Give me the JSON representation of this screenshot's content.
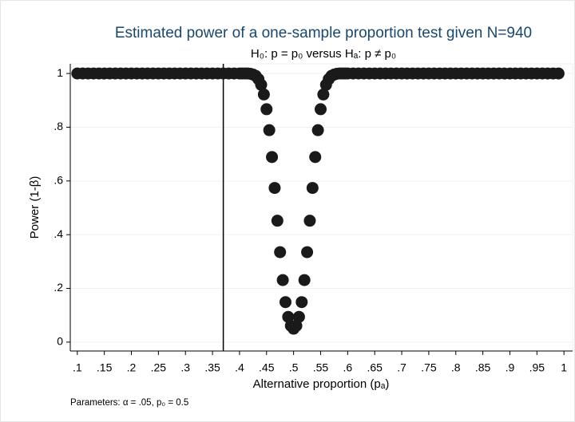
{
  "chart_data": {
    "type": "scatter",
    "title": "Estimated power of a one-sample proportion test given N=940",
    "subtitle": "H₀: p = p₀  versus  Hₐ: p ≠ p₀",
    "x_label": "Alternative proportion (pₐ)",
    "y_label": "Power (1-β)",
    "note": "Parameters: α = .05, p₀ = 0.5",
    "color": "#1a1a1a",
    "grid": true,
    "reference_line_x": 0.37,
    "xlim": [
      0.087,
      1.016
    ],
    "ylim": [
      -0.033,
      1.036
    ],
    "xticks": [
      {
        "value": 0.1,
        "label": ".1"
      },
      {
        "value": 0.15,
        "label": ".15"
      },
      {
        "value": 0.2,
        "label": ".2"
      },
      {
        "value": 0.25,
        "label": ".25"
      },
      {
        "value": 0.3,
        "label": ".3"
      },
      {
        "value": 0.35,
        "label": ".35"
      },
      {
        "value": 0.4,
        "label": ".4"
      },
      {
        "value": 0.45,
        "label": ".45"
      },
      {
        "value": 0.5,
        "label": ".5"
      },
      {
        "value": 0.55,
        "label": ".55"
      },
      {
        "value": 0.6,
        "label": ".6"
      },
      {
        "value": 0.65,
        "label": ".65"
      },
      {
        "value": 0.7,
        "label": ".7"
      },
      {
        "value": 0.75,
        "label": ".75"
      },
      {
        "value": 0.8,
        "label": ".8"
      },
      {
        "value": 0.85,
        "label": ".85"
      },
      {
        "value": 0.9,
        "label": ".9"
      },
      {
        "value": 0.95,
        "label": ".95"
      },
      1
    ],
    "yticks": [
      0,
      {
        "value": 0.2,
        "label": ".2"
      },
      {
        "value": 0.4,
        "label": ".4"
      },
      {
        "value": 0.6,
        "label": ".6"
      },
      {
        "value": 0.8,
        "label": ".8"
      },
      1
    ],
    "x": [
      0.1,
      0.11,
      0.12,
      0.13,
      0.14,
      0.15,
      0.16,
      0.17,
      0.18,
      0.19,
      0.2,
      0.21,
      0.22,
      0.23,
      0.24,
      0.25,
      0.26,
      0.27,
      0.28,
      0.29,
      0.3,
      0.31,
      0.32,
      0.33,
      0.34,
      0.35,
      0.36,
      0.37,
      0.38,
      0.39,
      0.4,
      0.405,
      0.41,
      0.415,
      0.42,
      0.425,
      0.43,
      0.435,
      0.44,
      0.445,
      0.45,
      0.455,
      0.46,
      0.465,
      0.47,
      0.475,
      0.48,
      0.485,
      0.49,
      0.495,
      0.5,
      0.505,
      0.51,
      0.515,
      0.52,
      0.525,
      0.53,
      0.535,
      0.54,
      0.545,
      0.55,
      0.555,
      0.56,
      0.565,
      0.57,
      0.575,
      0.58,
      0.585,
      0.59,
      0.595,
      0.6,
      0.61,
      0.62,
      0.63,
      0.64,
      0.65,
      0.66,
      0.67,
      0.68,
      0.69,
      0.7,
      0.71,
      0.72,
      0.73,
      0.74,
      0.75,
      0.76,
      0.77,
      0.78,
      0.79,
      0.8,
      0.81,
      0.82,
      0.83,
      0.84,
      0.85,
      0.86,
      0.87,
      0.88,
      0.89,
      0.9,
      0.91,
      0.92,
      0.93,
      0.94,
      0.95,
      0.96,
      0.97,
      0.98,
      0.99
    ],
    "values": [
      1,
      1,
      1,
      1,
      1,
      1,
      1,
      1,
      1,
      1,
      1,
      1,
      1,
      1,
      1,
      1,
      1,
      1,
      1,
      1,
      1,
      1,
      1,
      1,
      1,
      1,
      1,
      1,
      1,
      1,
      1,
      1,
      1,
      1,
      0.999,
      0.996,
      0.991,
      0.979,
      0.958,
      0.922,
      0.867,
      0.789,
      0.689,
      0.574,
      0.452,
      0.335,
      0.231,
      0.149,
      0.094,
      0.061,
      0.05,
      0.061,
      0.094,
      0.149,
      0.231,
      0.335,
      0.452,
      0.574,
      0.689,
      0.789,
      0.867,
      0.922,
      0.958,
      0.979,
      0.991,
      0.996,
      0.999,
      1,
      1,
      1,
      1,
      1,
      1,
      1,
      1,
      1,
      1,
      1,
      1,
      1,
      1,
      1,
      1,
      1,
      1,
      1,
      1,
      1,
      1,
      1,
      1,
      1,
      1,
      1,
      1,
      1,
      1,
      1,
      1,
      1,
      1,
      1,
      1,
      1,
      1,
      1,
      1,
      1,
      1,
      1
    ]
  }
}
